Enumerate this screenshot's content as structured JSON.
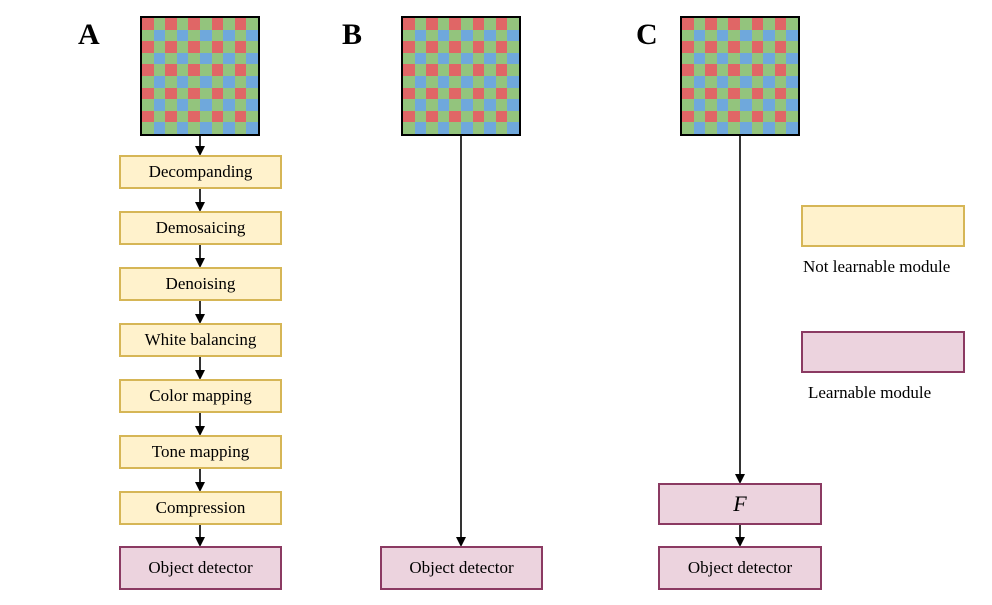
{
  "panels": {
    "a": {
      "label": "A"
    },
    "b": {
      "label": "B"
    },
    "c": {
      "label": "C"
    }
  },
  "pipeline": {
    "steps": [
      "Decompanding",
      "Demosaicing",
      "Denoising",
      "White balancing",
      "Color mapping",
      "Tone mapping",
      "Compression"
    ],
    "detector": "Object detector"
  },
  "panel_b": {
    "detector": "Object detector"
  },
  "panel_c": {
    "learnable": "F",
    "detector": "Object detector"
  },
  "legend": {
    "not_learnable": "Not learnable module",
    "learnable": "Learnable module"
  },
  "colors": {
    "bayer_red": "#e06666",
    "bayer_green": "#93c47d",
    "bayer_blue": "#6fa8dc",
    "not_learnable_fill": "#fff2cc",
    "not_learnable_border": "#d6b656",
    "learnable_fill": "#ecd3de",
    "learnable_border": "#8b3a62"
  }
}
